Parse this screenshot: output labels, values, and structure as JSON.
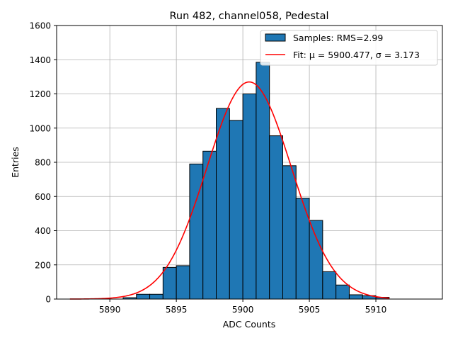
{
  "chart_data": {
    "type": "bar",
    "title": "Run 482, channel058, Pedestal",
    "xlabel": "ADC Counts",
    "ylabel": "Entries",
    "xlim": [
      5886,
      5915
    ],
    "ylim": [
      0,
      1600
    ],
    "x_ticks": [
      5890,
      5895,
      5900,
      5905,
      5910
    ],
    "y_ticks": [
      0,
      200,
      400,
      600,
      800,
      1000,
      1200,
      1400,
      1600
    ],
    "grid": true,
    "legend_position": "top-right",
    "series": [
      {
        "name": "Samples: RMS=2.99",
        "kind": "histogram",
        "color": "#1f77b4",
        "edgecolor": "#000000",
        "bin_width": 1,
        "bins": [
          5891,
          5892,
          5893,
          5894,
          5895,
          5896,
          5897,
          5898,
          5899,
          5900,
          5901,
          5902,
          5903,
          5904,
          5905,
          5906,
          5907,
          5908,
          5909,
          5910
        ],
        "values": [
          8,
          28,
          28,
          185,
          195,
          790,
          865,
          1115,
          1045,
          1200,
          1385,
          955,
          780,
          590,
          460,
          160,
          82,
          25,
          20,
          10
        ]
      },
      {
        "name": "Fit: μ = 5900.477, σ = 3.173",
        "kind": "gaussian",
        "color": "#ff0000",
        "mu": 5900.477,
        "sigma": 3.173,
        "amplitude": 1270,
        "x_range": [
          5887,
          5911
        ]
      }
    ]
  }
}
